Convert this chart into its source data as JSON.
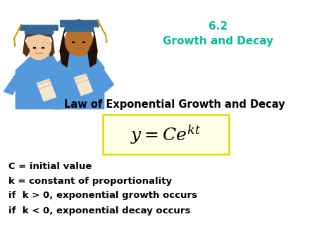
{
  "title_line1": "6.2",
  "title_line2": "Growth and Decay",
  "title_color": "#00BB99",
  "subtitle": "Law of Exponential Growth and Decay",
  "subtitle_color": "#000000",
  "formula_box_edge": "#DDDD00",
  "formula_box_face": "#FFFFE8",
  "bullet1": "C = initial value",
  "bullet2": "k = constant of proportionality",
  "bullet3": "if  k > 0, exponential growth occurs",
  "bullet4": "if  k < 0, exponential decay occurs",
  "bullets_color": "#000000",
  "bg_color": "#FFFFFF"
}
